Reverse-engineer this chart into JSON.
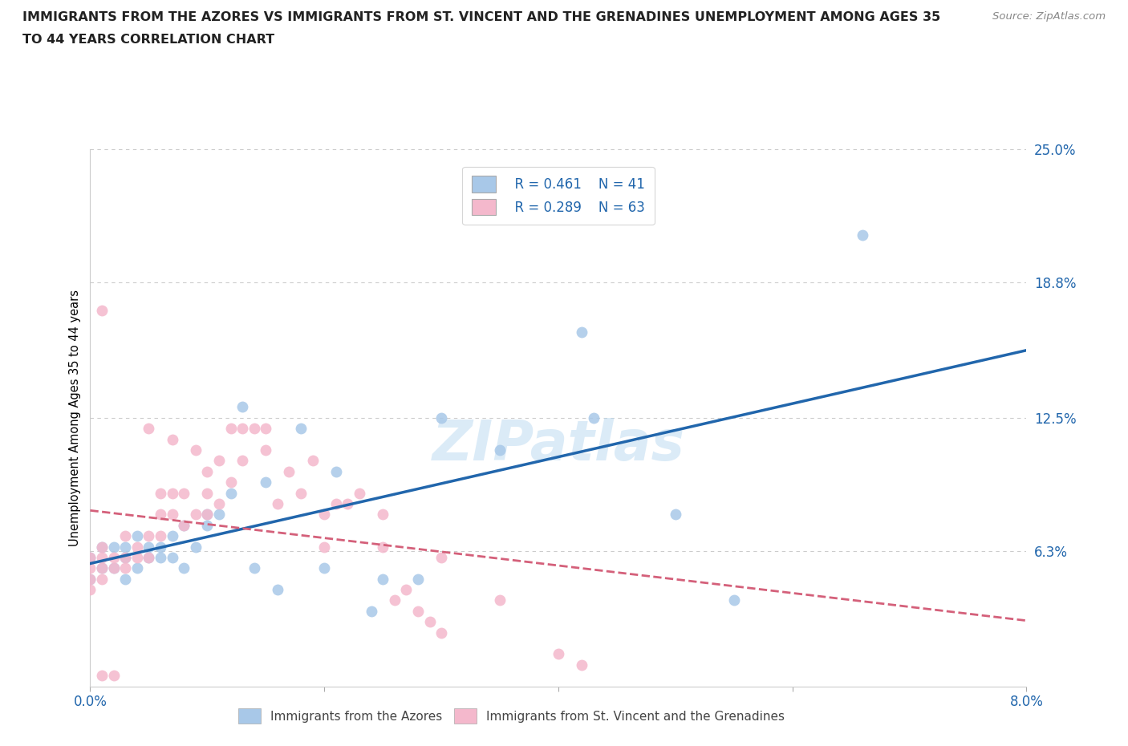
{
  "title_line1": "IMMIGRANTS FROM THE AZORES VS IMMIGRANTS FROM ST. VINCENT AND THE GRENADINES UNEMPLOYMENT AMONG AGES 35",
  "title_line2": "TO 44 YEARS CORRELATION CHART",
  "source": "Source: ZipAtlas.com",
  "ylabel": "Unemployment Among Ages 35 to 44 years",
  "xlim": [
    0.0,
    0.08
  ],
  "ylim": [
    0.0,
    0.25
  ],
  "legend_r1": "R = 0.461",
  "legend_n1": "N = 41",
  "legend_r2": "R = 0.289",
  "legend_n2": "N = 63",
  "blue_color": "#a8c8e8",
  "pink_color": "#f4b8cc",
  "blue_line_color": "#2166ac",
  "pink_line_color": "#d4607a",
  "azores_x": [
    0.0,
    0.0,
    0.001,
    0.001,
    0.002,
    0.002,
    0.003,
    0.003,
    0.003,
    0.004,
    0.004,
    0.005,
    0.005,
    0.006,
    0.006,
    0.007,
    0.007,
    0.008,
    0.008,
    0.009,
    0.01,
    0.01,
    0.011,
    0.012,
    0.013,
    0.014,
    0.015,
    0.016,
    0.018,
    0.02,
    0.021,
    0.024,
    0.025,
    0.028,
    0.03,
    0.035,
    0.042,
    0.043,
    0.05,
    0.055,
    0.066
  ],
  "azores_y": [
    0.05,
    0.06,
    0.055,
    0.065,
    0.055,
    0.065,
    0.05,
    0.06,
    0.065,
    0.055,
    0.07,
    0.06,
    0.065,
    0.06,
    0.065,
    0.06,
    0.07,
    0.055,
    0.075,
    0.065,
    0.075,
    0.08,
    0.08,
    0.09,
    0.13,
    0.055,
    0.095,
    0.045,
    0.12,
    0.055,
    0.1,
    0.035,
    0.05,
    0.05,
    0.125,
    0.11,
    0.165,
    0.125,
    0.08,
    0.04,
    0.21
  ],
  "svg_x": [
    0.0,
    0.0,
    0.0,
    0.0,
    0.001,
    0.001,
    0.001,
    0.001,
    0.002,
    0.002,
    0.003,
    0.003,
    0.003,
    0.004,
    0.004,
    0.005,
    0.005,
    0.005,
    0.006,
    0.006,
    0.006,
    0.007,
    0.007,
    0.007,
    0.008,
    0.008,
    0.009,
    0.009,
    0.01,
    0.01,
    0.01,
    0.011,
    0.011,
    0.012,
    0.012,
    0.013,
    0.013,
    0.014,
    0.015,
    0.015,
    0.016,
    0.017,
    0.018,
    0.019,
    0.02,
    0.02,
    0.021,
    0.022,
    0.023,
    0.025,
    0.025,
    0.026,
    0.027,
    0.028,
    0.029,
    0.03,
    0.03,
    0.035,
    0.04,
    0.042,
    0.001,
    0.002,
    0.001
  ],
  "svg_y": [
    0.045,
    0.05,
    0.055,
    0.06,
    0.05,
    0.055,
    0.06,
    0.065,
    0.055,
    0.06,
    0.055,
    0.06,
    0.07,
    0.06,
    0.065,
    0.06,
    0.07,
    0.12,
    0.07,
    0.08,
    0.09,
    0.08,
    0.09,
    0.115,
    0.075,
    0.09,
    0.08,
    0.11,
    0.08,
    0.09,
    0.1,
    0.085,
    0.105,
    0.095,
    0.12,
    0.105,
    0.12,
    0.12,
    0.11,
    0.12,
    0.085,
    0.1,
    0.09,
    0.105,
    0.065,
    0.08,
    0.085,
    0.085,
    0.09,
    0.065,
    0.08,
    0.04,
    0.045,
    0.035,
    0.03,
    0.025,
    0.06,
    0.04,
    0.015,
    0.01,
    0.005,
    0.005,
    0.175
  ]
}
